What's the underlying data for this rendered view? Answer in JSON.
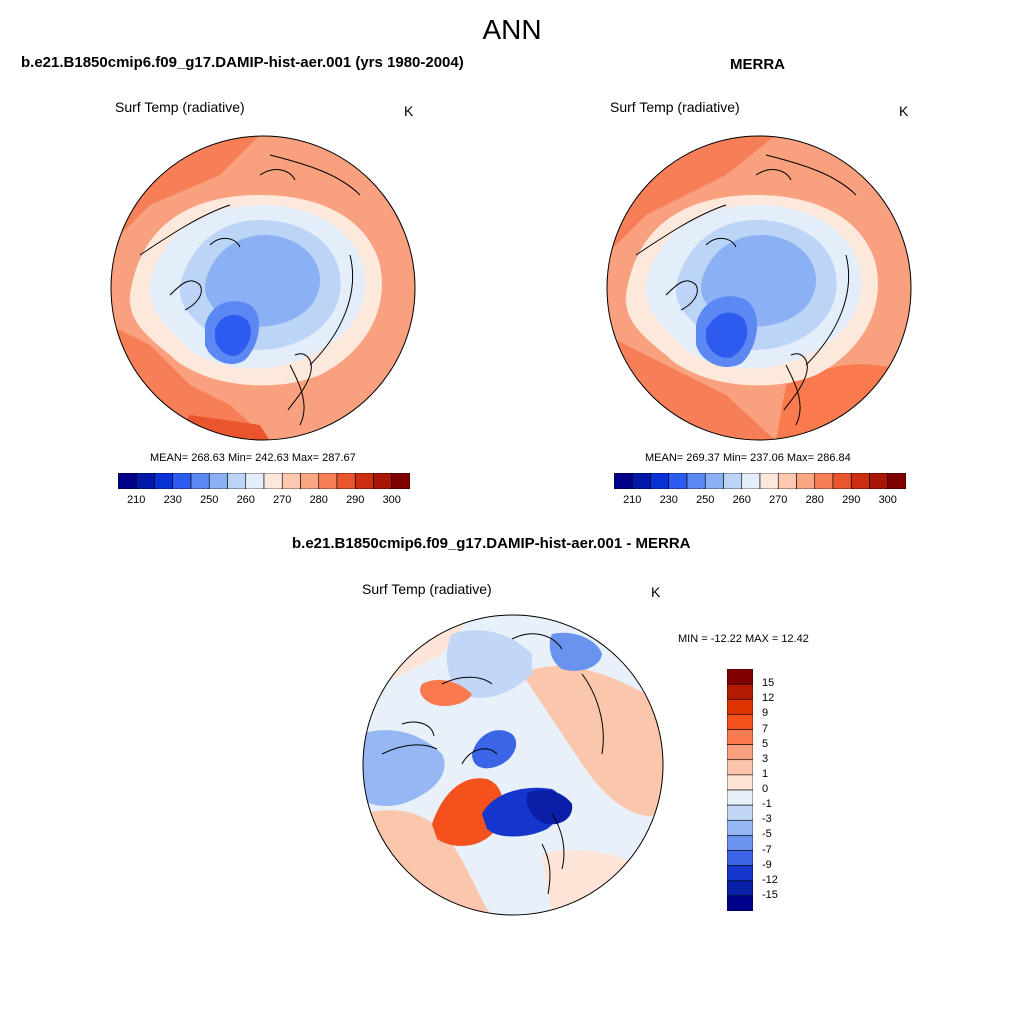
{
  "title": "ANN",
  "panels": [
    {
      "heading": "b.e21.B1850cmip6.f09_g17.DAMIP-hist-aer.001 (yrs 1980-2004)",
      "variable": "Surf Temp (radiative)",
      "units": "K",
      "stats": "MEAN= 268.63  Min= 242.63  Max= 287.67"
    },
    {
      "heading": "MERRA",
      "variable": "Surf Temp (radiative)",
      "units": "K",
      "stats": "MEAN= 269.37  Min= 237.06  Max= 286.84"
    },
    {
      "heading": "b.e21.B1850cmip6.f09_g17.DAMIP-hist-aer.001 - MERRA",
      "variable": "Surf Temp (radiative)",
      "units": "K",
      "stats": "MIN = -12.22 MAX =  12.42"
    }
  ],
  "abs_colorbar": {
    "labels": [
      "210",
      "230",
      "250",
      "260",
      "270",
      "280",
      "290",
      "300"
    ],
    "colors": [
      "#00008b",
      "#0018a8",
      "#0832d6",
      "#2d5bef",
      "#5b88f2",
      "#8cb0f4",
      "#bcd4f6",
      "#e4eefa",
      "#fde8dc",
      "#fcc8b0",
      "#faa584",
      "#f67f58",
      "#ea5530",
      "#cc2e12",
      "#a81606",
      "#800000"
    ]
  },
  "diff_colorbar": {
    "labels": [
      "15",
      "12",
      "9",
      "7",
      "5",
      "3",
      "1",
      "0",
      "-1",
      "-3",
      "-5",
      "-7",
      "-9",
      "-12",
      "-15"
    ],
    "colors": [
      "#800000",
      "#b31a00",
      "#dd3300",
      "#f4511d",
      "#f87a4e",
      "#f9a07e",
      "#fac6ac",
      "#fde4d6",
      "#e8f0fa",
      "#c2d6f6",
      "#96b6f4",
      "#6a92ef",
      "#3c64e6",
      "#1536cc",
      "#0a1ea8",
      "#00008b"
    ]
  }
}
